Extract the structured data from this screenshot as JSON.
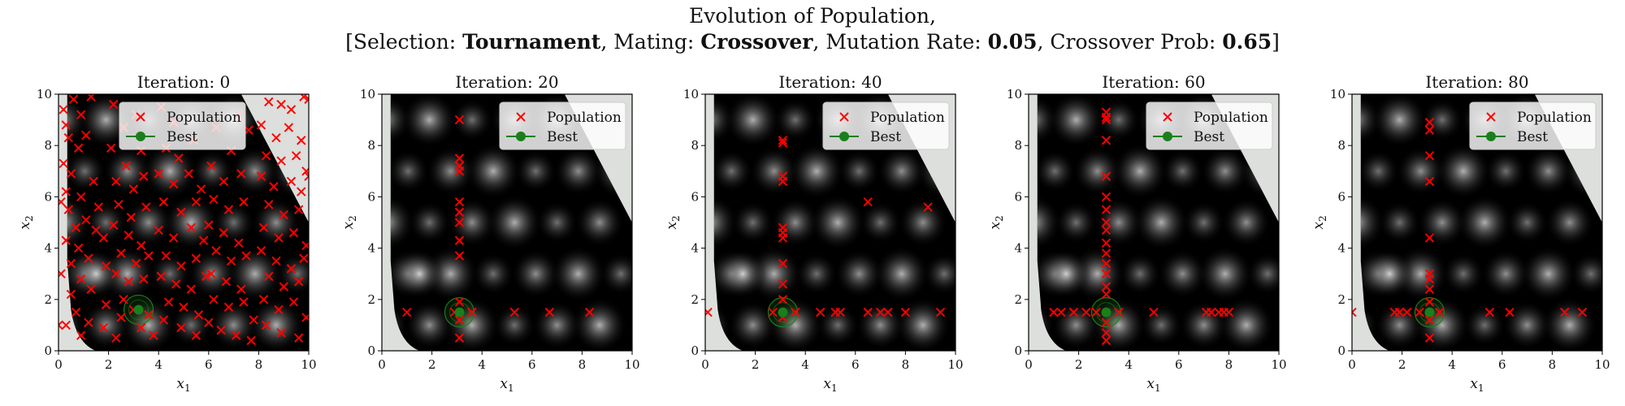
{
  "title": {
    "line1": "Evolution of Population,",
    "prefix_selection": "[Selection: ",
    "selection": "Tournament",
    "prefix_mating": ", Mating: ",
    "mating": "Crossover",
    "prefix_mutation": ", Mutation Rate: ",
    "mutation_rate": "0.05",
    "prefix_crossover": ", Crossover Prob: ",
    "crossover_prob": "0.65",
    "suffix": "]"
  },
  "colors": {
    "population": "#ff0000",
    "best": "#1a7f1a",
    "infeasible": "#dcdfdc",
    "landscape_dark": "#000000",
    "landscape_light": "#d8d8d8"
  },
  "chart_data": [
    {
      "type": "scatter",
      "title": "Iteration: 0",
      "xlabel": "x1",
      "ylabel": "x2",
      "xlim": [
        0,
        10
      ],
      "ylim": [
        0,
        10
      ],
      "xticks": [
        "0",
        "2",
        "4",
        "6",
        "8",
        "10"
      ],
      "yticks": [
        "0",
        "2",
        "4",
        "6",
        "8",
        "10"
      ],
      "legend": [
        "Population",
        "Best"
      ],
      "legend_loc": "top-center",
      "best": [
        3.2,
        1.6
      ],
      "population": [
        [
          0.2,
          9.4
        ],
        [
          0.3,
          8.8
        ],
        [
          0.6,
          9.8
        ],
        [
          0.4,
          8.3
        ],
        [
          0.9,
          9.2
        ],
        [
          1.3,
          9.9
        ],
        [
          0.2,
          7.3
        ],
        [
          0.8,
          7.9
        ],
        [
          1.1,
          8.4
        ],
        [
          0.5,
          6.9
        ],
        [
          1.4,
          6.6
        ],
        [
          0.3,
          6.2
        ],
        [
          0.9,
          6.0
        ],
        [
          1.6,
          5.6
        ],
        [
          0.4,
          5.5
        ],
        [
          1.1,
          5.1
        ],
        [
          0.7,
          4.8
        ],
        [
          1.5,
          4.7
        ],
        [
          0.3,
          4.3
        ],
        [
          1.8,
          4.4
        ],
        [
          0.8,
          4.0
        ],
        [
          1.2,
          3.6
        ],
        [
          0.5,
          3.4
        ],
        [
          1.9,
          3.3
        ],
        [
          0.9,
          2.8
        ],
        [
          1.3,
          2.4
        ],
        [
          0.5,
          2.2
        ],
        [
          1.9,
          1.8
        ],
        [
          0.7,
          1.5
        ],
        [
          1.2,
          1.1
        ],
        [
          0.3,
          1.0
        ],
        [
          1.8,
          0.9
        ],
        [
          0.9,
          0.6
        ],
        [
          2.3,
          0.5
        ],
        [
          2.2,
          9.6
        ],
        [
          2.6,
          8.7
        ],
        [
          3.1,
          9.2
        ],
        [
          2.1,
          7.9
        ],
        [
          2.7,
          7.2
        ],
        [
          3.3,
          7.8
        ],
        [
          2.3,
          6.6
        ],
        [
          3.0,
          6.3
        ],
        [
          3.4,
          6.8
        ],
        [
          2.4,
          5.7
        ],
        [
          2.9,
          5.2
        ],
        [
          3.5,
          5.6
        ],
        [
          2.2,
          4.9
        ],
        [
          2.8,
          4.5
        ],
        [
          3.3,
          4.1
        ],
        [
          2.5,
          3.8
        ],
        [
          3.1,
          3.4
        ],
        [
          3.6,
          3.7
        ],
        [
          2.3,
          3.0
        ],
        [
          2.8,
          2.7
        ],
        [
          3.4,
          2.8
        ],
        [
          2.6,
          2.0
        ],
        [
          3.0,
          1.6
        ],
        [
          3.6,
          1.4
        ],
        [
          2.5,
          1.3
        ],
        [
          3.3,
          0.9
        ],
        [
          3.8,
          0.6
        ],
        [
          4.1,
          9.5
        ],
        [
          4.6,
          8.9
        ],
        [
          4.3,
          7.9
        ],
        [
          4.8,
          7.5
        ],
        [
          5.4,
          8.2
        ],
        [
          4.0,
          6.9
        ],
        [
          4.6,
          6.5
        ],
        [
          5.2,
          6.9
        ],
        [
          5.7,
          6.3
        ],
        [
          4.2,
          5.8
        ],
        [
          4.9,
          5.4
        ],
        [
          5.5,
          5.8
        ],
        [
          4.0,
          4.7
        ],
        [
          4.6,
          4.4
        ],
        [
          5.3,
          4.8
        ],
        [
          5.8,
          4.3
        ],
        [
          4.3,
          3.7
        ],
        [
          4.9,
          3.3
        ],
        [
          5.5,
          3.6
        ],
        [
          4.1,
          2.9
        ],
        [
          4.7,
          2.6
        ],
        [
          5.3,
          2.4
        ],
        [
          5.9,
          2.9
        ],
        [
          4.4,
          1.9
        ],
        [
          5.0,
          1.7
        ],
        [
          5.6,
          1.4
        ],
        [
          4.2,
          1.2
        ],
        [
          4.9,
          0.9
        ],
        [
          5.5,
          0.6
        ],
        [
          6.3,
          8.7
        ],
        [
          6.9,
          7.8
        ],
        [
          6.1,
          7.2
        ],
        [
          6.6,
          6.6
        ],
        [
          7.3,
          6.9
        ],
        [
          6.2,
          5.9
        ],
        [
          6.8,
          5.5
        ],
        [
          7.4,
          5.8
        ],
        [
          6.0,
          4.9
        ],
        [
          6.6,
          4.6
        ],
        [
          7.2,
          4.2
        ],
        [
          6.3,
          3.9
        ],
        [
          6.9,
          3.5
        ],
        [
          7.5,
          3.7
        ],
        [
          6.1,
          3.0
        ],
        [
          6.7,
          2.7
        ],
        [
          7.3,
          2.4
        ],
        [
          6.2,
          2.0
        ],
        [
          6.8,
          1.7
        ],
        [
          7.4,
          1.9
        ],
        [
          6.0,
          1.1
        ],
        [
          6.5,
          0.8
        ],
        [
          7.1,
          0.6
        ],
        [
          7.8,
          1.2
        ],
        [
          7.2,
          9.2
        ],
        [
          7.6,
          8.6
        ],
        [
          8.4,
          9.7
        ],
        [
          8.9,
          9.6
        ],
        [
          9.3,
          9.4
        ],
        [
          9.8,
          9.9
        ],
        [
          8.1,
          8.8
        ],
        [
          8.7,
          8.3
        ],
        [
          9.2,
          8.7
        ],
        [
          9.7,
          8.2
        ],
        [
          8.3,
          7.6
        ],
        [
          8.9,
          7.4
        ],
        [
          9.5,
          7.6
        ],
        [
          9.9,
          7.0
        ],
        [
          8.1,
          6.8
        ],
        [
          8.6,
          6.4
        ],
        [
          9.3,
          6.6
        ],
        [
          9.7,
          6.2
        ],
        [
          8.4,
          5.7
        ],
        [
          9.0,
          5.3
        ],
        [
          9.6,
          5.5
        ],
        [
          8.2,
          4.8
        ],
        [
          8.8,
          4.4
        ],
        [
          9.4,
          4.6
        ],
        [
          9.9,
          4.1
        ],
        [
          8.1,
          3.9
        ],
        [
          8.7,
          3.5
        ],
        [
          9.3,
          3.2
        ],
        [
          9.8,
          3.6
        ],
        [
          8.4,
          2.9
        ],
        [
          9.0,
          2.5
        ],
        [
          9.6,
          2.7
        ],
        [
          8.2,
          2.0
        ],
        [
          8.8,
          1.6
        ],
        [
          9.4,
          1.9
        ],
        [
          9.9,
          1.3
        ],
        [
          8.3,
          1.0
        ],
        [
          8.9,
          0.7
        ],
        [
          9.6,
          0.5
        ],
        [
          7.7,
          0.4
        ],
        [
          10.0,
          9.8
        ],
        [
          10.0,
          6.8
        ],
        [
          0.1,
          5.8
        ],
        [
          0.1,
          3.0
        ],
        [
          0.0,
          1.0
        ]
      ]
    },
    {
      "type": "scatter",
      "title": "Iteration: 20",
      "xlabel": "x1",
      "ylabel": "x2",
      "xlim": [
        0,
        10
      ],
      "ylim": [
        0,
        10
      ],
      "xticks": [
        "0",
        "2",
        "4",
        "6",
        "8",
        "10"
      ],
      "yticks": [
        "0",
        "2",
        "4",
        "6",
        "8",
        "10"
      ],
      "legend": [
        "Population",
        "Best"
      ],
      "legend_loc": "upper right",
      "best": [
        3.1,
        1.5
      ],
      "population": [
        [
          3.1,
          9.0
        ],
        [
          3.1,
          7.5
        ],
        [
          3.1,
          7.2
        ],
        [
          3.1,
          7.0
        ],
        [
          3.1,
          5.8
        ],
        [
          3.1,
          5.4
        ],
        [
          3.1,
          5.0
        ],
        [
          3.1,
          4.3
        ],
        [
          3.1,
          3.7
        ],
        [
          3.1,
          1.9
        ],
        [
          3.1,
          1.2
        ],
        [
          3.1,
          0.5
        ],
        [
          1.0,
          1.5
        ],
        [
          2.9,
          1.5
        ],
        [
          3.6,
          1.5
        ],
        [
          5.3,
          1.5
        ],
        [
          6.7,
          1.5
        ],
        [
          8.3,
          1.5
        ]
      ]
    },
    {
      "type": "scatter",
      "title": "Iteration: 40",
      "xlabel": "x1",
      "ylabel": "x2",
      "xlim": [
        0,
        10
      ],
      "ylim": [
        0,
        10
      ],
      "xticks": [
        "0",
        "2",
        "4",
        "6",
        "8",
        "10"
      ],
      "yticks": [
        "0",
        "2",
        "4",
        "6",
        "8",
        "10"
      ],
      "legend": [
        "Population",
        "Best"
      ],
      "legend_loc": "upper right",
      "best": [
        3.1,
        1.5
      ],
      "population": [
        [
          3.1,
          8.2
        ],
        [
          3.1,
          8.1
        ],
        [
          3.1,
          6.8
        ],
        [
          3.1,
          6.6
        ],
        [
          3.1,
          4.8
        ],
        [
          3.1,
          4.6
        ],
        [
          3.1,
          4.4
        ],
        [
          3.1,
          3.4
        ],
        [
          3.1,
          2.6
        ],
        [
          3.1,
          2.0
        ],
        [
          3.1,
          1.3
        ],
        [
          0.1,
          1.5
        ],
        [
          2.7,
          1.5
        ],
        [
          3.6,
          1.5
        ],
        [
          4.6,
          1.5
        ],
        [
          5.2,
          1.5
        ],
        [
          5.4,
          1.5
        ],
        [
          6.5,
          1.5
        ],
        [
          7.0,
          1.5
        ],
        [
          7.3,
          1.5
        ],
        [
          8.0,
          1.5
        ],
        [
          9.4,
          1.5
        ],
        [
          6.5,
          5.8
        ],
        [
          8.9,
          5.6
        ]
      ]
    },
    {
      "type": "scatter",
      "title": "Iteration: 60",
      "xlabel": "x1",
      "ylabel": "x2",
      "xlim": [
        0,
        10
      ],
      "ylim": [
        0,
        10
      ],
      "xticks": [
        "0",
        "2",
        "4",
        "6",
        "8",
        "10"
      ],
      "yticks": [
        "0",
        "2",
        "4",
        "6",
        "8",
        "10"
      ],
      "legend": [
        "Population",
        "Best"
      ],
      "legend_loc": "upper right",
      "best": [
        3.1,
        1.5
      ],
      "population": [
        [
          3.1,
          9.3
        ],
        [
          3.1,
          9.1
        ],
        [
          3.1,
          9.0
        ],
        [
          3.1,
          8.2
        ],
        [
          3.1,
          6.8
        ],
        [
          3.1,
          6.0
        ],
        [
          3.1,
          5.5
        ],
        [
          3.1,
          5.0
        ],
        [
          3.1,
          4.7
        ],
        [
          3.1,
          4.2
        ],
        [
          3.1,
          3.8
        ],
        [
          3.1,
          3.4
        ],
        [
          3.1,
          3.0
        ],
        [
          3.1,
          2.5
        ],
        [
          3.1,
          2.2
        ],
        [
          3.1,
          1.1
        ],
        [
          3.1,
          0.7
        ],
        [
          3.1,
          0.4
        ],
        [
          1.0,
          1.5
        ],
        [
          1.3,
          1.5
        ],
        [
          1.8,
          1.5
        ],
        [
          2.3,
          1.5
        ],
        [
          2.7,
          1.5
        ],
        [
          3.6,
          1.5
        ],
        [
          5.0,
          1.5
        ],
        [
          7.1,
          1.5
        ],
        [
          7.3,
          1.5
        ],
        [
          7.6,
          1.5
        ],
        [
          7.8,
          1.5
        ],
        [
          8.0,
          1.5
        ]
      ]
    },
    {
      "type": "scatter",
      "title": "Iteration: 80",
      "xlabel": "x1",
      "ylabel": "x2",
      "xlim": [
        0,
        10
      ],
      "ylim": [
        0,
        10
      ],
      "xticks": [
        "0",
        "2",
        "4",
        "6",
        "8",
        "10"
      ],
      "yticks": [
        "0",
        "2",
        "4",
        "6",
        "8",
        "10"
      ],
      "legend": [
        "Population",
        "Best"
      ],
      "legend_loc": "upper right",
      "best": [
        3.1,
        1.5
      ],
      "population": [
        [
          3.1,
          8.9
        ],
        [
          3.1,
          8.6
        ],
        [
          3.1,
          7.6
        ],
        [
          3.1,
          6.6
        ],
        [
          3.1,
          4.4
        ],
        [
          3.1,
          3.0
        ],
        [
          3.1,
          2.8
        ],
        [
          3.1,
          2.4
        ],
        [
          3.1,
          1.9
        ],
        [
          3.1,
          1.2
        ],
        [
          3.1,
          0.5
        ],
        [
          0.0,
          1.5
        ],
        [
          1.7,
          1.5
        ],
        [
          1.9,
          1.5
        ],
        [
          2.2,
          1.5
        ],
        [
          2.7,
          1.5
        ],
        [
          3.5,
          1.5
        ],
        [
          5.5,
          1.5
        ],
        [
          6.3,
          1.5
        ],
        [
          8.5,
          1.5
        ],
        [
          9.2,
          1.5
        ]
      ]
    }
  ]
}
